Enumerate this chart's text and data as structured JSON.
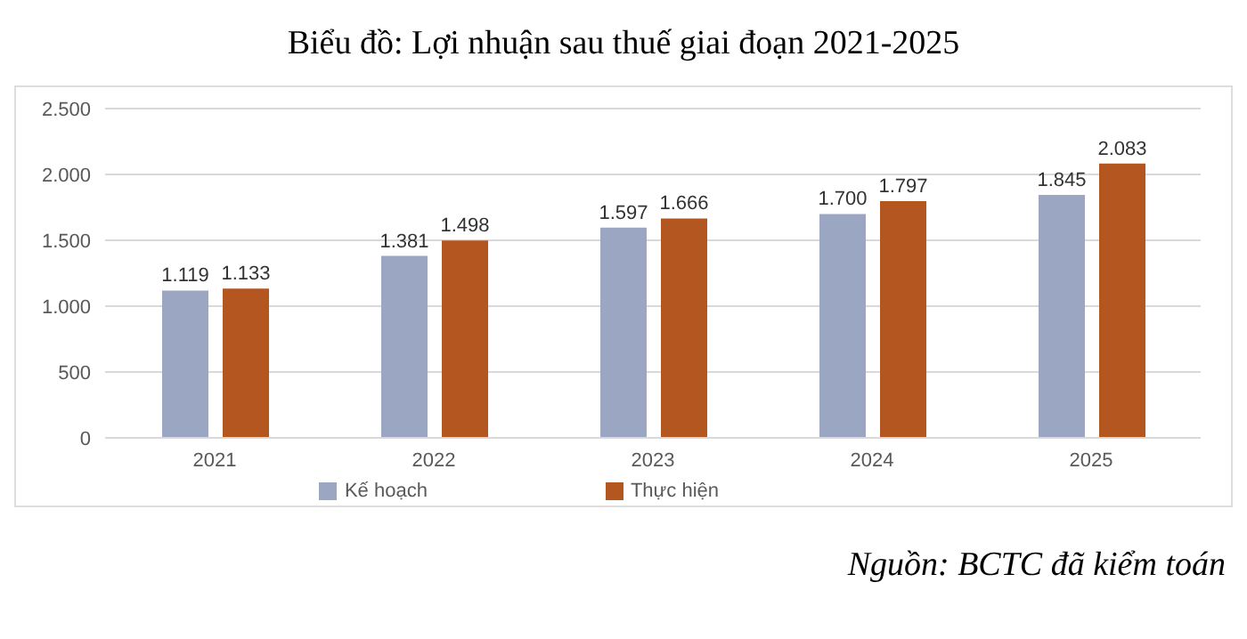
{
  "chart_data": {
    "type": "bar",
    "title": "Biểu đồ: Lợi nhuận sau thuế giai đoạn 2021-2025",
    "categories": [
      "2021",
      "2022",
      "2023",
      "2024",
      "2025"
    ],
    "series": [
      {
        "name": "Kế hoạch",
        "color": "#9ba6c2",
        "values": [
          1119,
          1381,
          1597,
          1700,
          1845
        ],
        "value_labels": [
          "1.119",
          "1.381",
          "1.597",
          "1.700",
          "1.845"
        ]
      },
      {
        "name": "Thực hiện",
        "color": "#b4561f",
        "values": [
          1133,
          1498,
          1666,
          1797,
          2083
        ],
        "value_labels": [
          "1.133",
          "1.498",
          "1.666",
          "1.797",
          "2.083"
        ]
      }
    ],
    "ylim": [
      0,
      2500
    ],
    "yticks": [
      {
        "value": 0,
        "label": "0"
      },
      {
        "value": 500,
        "label": "500"
      },
      {
        "value": 1000,
        "label": "1.000"
      },
      {
        "value": 1500,
        "label": "1.500"
      },
      {
        "value": 2000,
        "label": "2.000"
      },
      {
        "value": 2500,
        "label": "2.500"
      }
    ],
    "grid": "y",
    "legend": "bottom",
    "annotations": [
      "Nguồn: BCTC đã kiểm toán"
    ]
  }
}
